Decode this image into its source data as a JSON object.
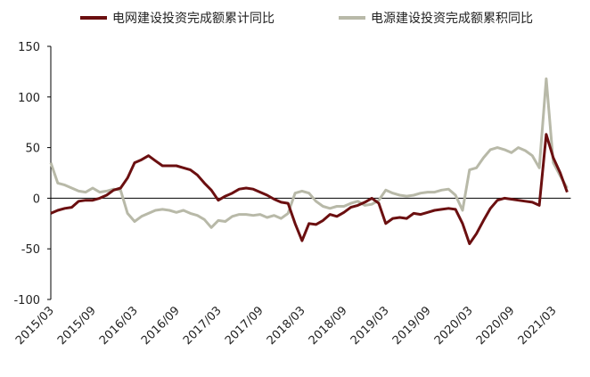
{
  "chart_data": {
    "type": "line",
    "categories": [
      "2015/03",
      null,
      null,
      null,
      null,
      null,
      "2015/09",
      null,
      null,
      null,
      null,
      null,
      "2016/03",
      null,
      null,
      null,
      null,
      null,
      "2016/09",
      null,
      null,
      null,
      null,
      null,
      "2017/03",
      null,
      null,
      null,
      null,
      null,
      "2017/09",
      null,
      null,
      null,
      null,
      null,
      "2018/03",
      null,
      null,
      null,
      null,
      null,
      "2018/09",
      null,
      null,
      null,
      null,
      null,
      "2019/03",
      null,
      null,
      null,
      null,
      null,
      "2019/09",
      null,
      null,
      null,
      null,
      null,
      "2020/03",
      null,
      null,
      null,
      null,
      null,
      "2020/09",
      null,
      null,
      null,
      null,
      null,
      "2021/03",
      null,
      null
    ],
    "series": [
      {
        "name": "电网建设投资完成额累计同比",
        "color": "#6b0f10",
        "values": [
          -15,
          -12,
          -10,
          -9,
          -3,
          -2,
          -2,
          0,
          3,
          8,
          10,
          20,
          35,
          38,
          42,
          37,
          32,
          32,
          32,
          30,
          28,
          23,
          15,
          8,
          -2,
          2,
          5,
          9,
          10,
          9,
          6,
          3,
          -1,
          -4,
          -5,
          -25,
          -42,
          -25,
          -26,
          -22,
          -16,
          -18,
          -14,
          -9,
          -7,
          -4,
          0,
          -5,
          -25,
          -20,
          -19,
          -20,
          -15,
          -16,
          -14,
          -12,
          -11,
          -10,
          -11,
          -25,
          -45,
          -35,
          -22,
          -10,
          -2,
          0,
          -1,
          -2,
          -3,
          -4,
          -7,
          63,
          40,
          25,
          6
        ]
      },
      {
        "name": "电源建设投资完成额累积同比",
        "color": "#b8b9a8",
        "values": [
          35,
          15,
          13,
          10,
          7,
          6,
          10,
          6,
          7,
          9,
          8,
          -15,
          -23,
          -18,
          -15,
          -12,
          -11,
          -12,
          -14,
          -12,
          -15,
          -17,
          -21,
          -29,
          -22,
          -23,
          -18,
          -16,
          -16,
          -17,
          -16,
          -19,
          -17,
          -20,
          -15,
          5,
          7,
          5,
          -3,
          -8,
          -10,
          -8,
          -8,
          -5,
          -3,
          -7,
          -6,
          -2,
          8,
          5,
          3,
          2,
          3,
          5,
          6,
          6,
          8,
          9,
          3,
          -12,
          28,
          30,
          40,
          48,
          50,
          48,
          45,
          50,
          47,
          42,
          30,
          118,
          35,
          22,
          10
        ]
      }
    ],
    "ylim": [
      -100,
      150
    ],
    "yticks": [
      -100,
      -50,
      0,
      50,
      100,
      150
    ]
  }
}
